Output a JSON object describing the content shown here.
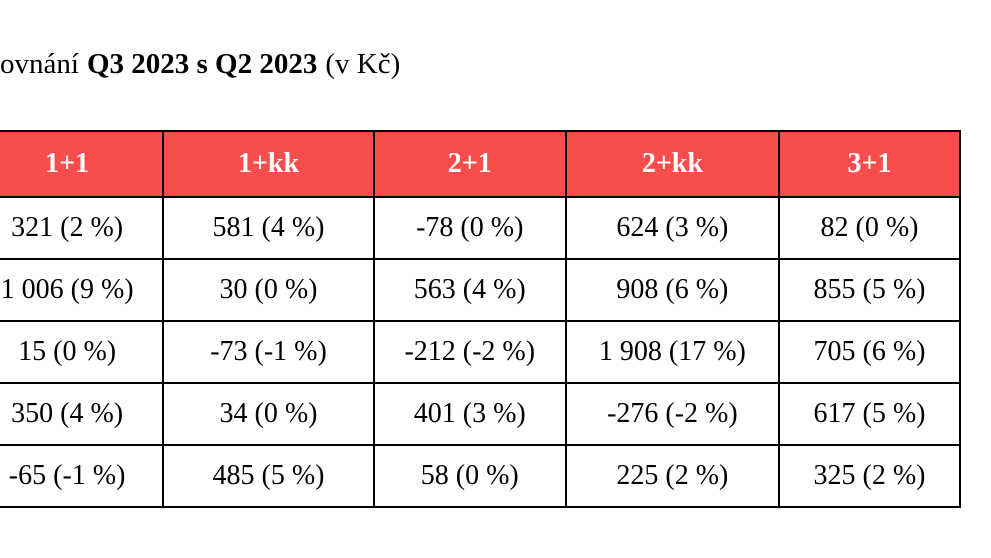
{
  "title": {
    "lead": "ovnání",
    "bold": "Q3 2023 s Q2 2023",
    "unit": "(v Kč)"
  },
  "table": {
    "header": [
      "1+1",
      "1+kk",
      "2+1",
      "2+kk",
      "3+1"
    ],
    "rows": [
      [
        "321 (2 %)",
        "581 (4 %)",
        "-78 (0 %)",
        "624 (3 %)",
        "82 (0 %)"
      ],
      [
        "1 006 (9 %)",
        "30 (0 %)",
        "563 (4 %)",
        "908 (6 %)",
        "855 (5 %)"
      ],
      [
        "15 (0 %)",
        "-73 (-1 %)",
        "-212 (-2 %)",
        "1 908 (17 %)",
        "705 (6 %)"
      ],
      [
        "350 (4 %)",
        "34 (0 %)",
        "401 (3 %)",
        "-276 (-2 %)",
        "617 (5 %)"
      ],
      [
        "-65 (-1 %)",
        "485 (5 %)",
        "58 (0 %)",
        "225 (2 %)",
        "325 (2 %)"
      ]
    ]
  }
}
